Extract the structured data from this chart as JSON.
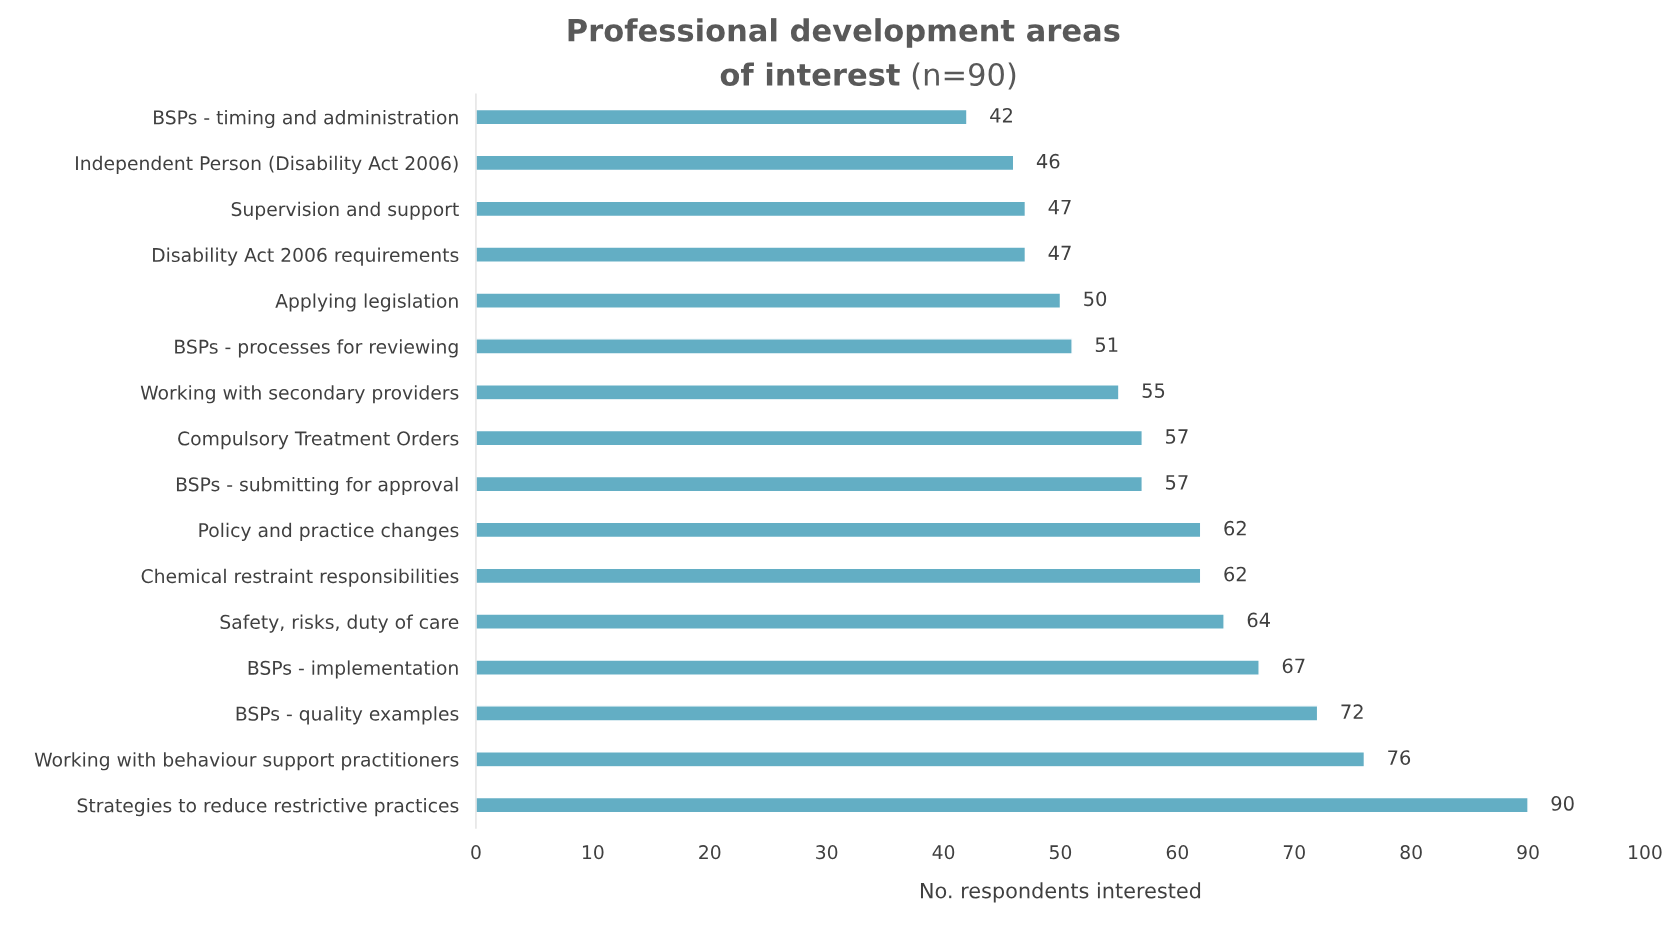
{
  "chart_data": {
    "type": "bar",
    "orientation": "horizontal",
    "title": "Professional development areas of interest",
    "subtitle": "(n=90)",
    "xlabel": "No. respondents interested",
    "categories": [
      "BSPs - timing and administration",
      "Independent Person (Disability Act 2006)",
      "Supervision and support",
      "Disability Act 2006 requirements",
      "Applying legislation",
      "BSPs - processes for reviewing",
      "Working with secondary providers",
      "Compulsory Treatment Orders",
      "BSPs - submitting for approval",
      "Policy and practice changes",
      "Chemical restraint responsibilities",
      "Safety, risks, duty of care",
      "BSPs - implementation",
      "BSPs - quality examples",
      "Working with behaviour support practitioners",
      "Strategies to reduce restrictive practices"
    ],
    "values": [
      42,
      46,
      47,
      47,
      50,
      51,
      55,
      57,
      57,
      62,
      62,
      64,
      67,
      72,
      76,
      90
    ],
    "color": "#63aec4",
    "xlim": [
      0,
      100
    ],
    "xticks": [
      0,
      10,
      20,
      30,
      40,
      50,
      60,
      70,
      80,
      90,
      100
    ],
    "data_labels": true,
    "grid": false,
    "legend": false
  }
}
